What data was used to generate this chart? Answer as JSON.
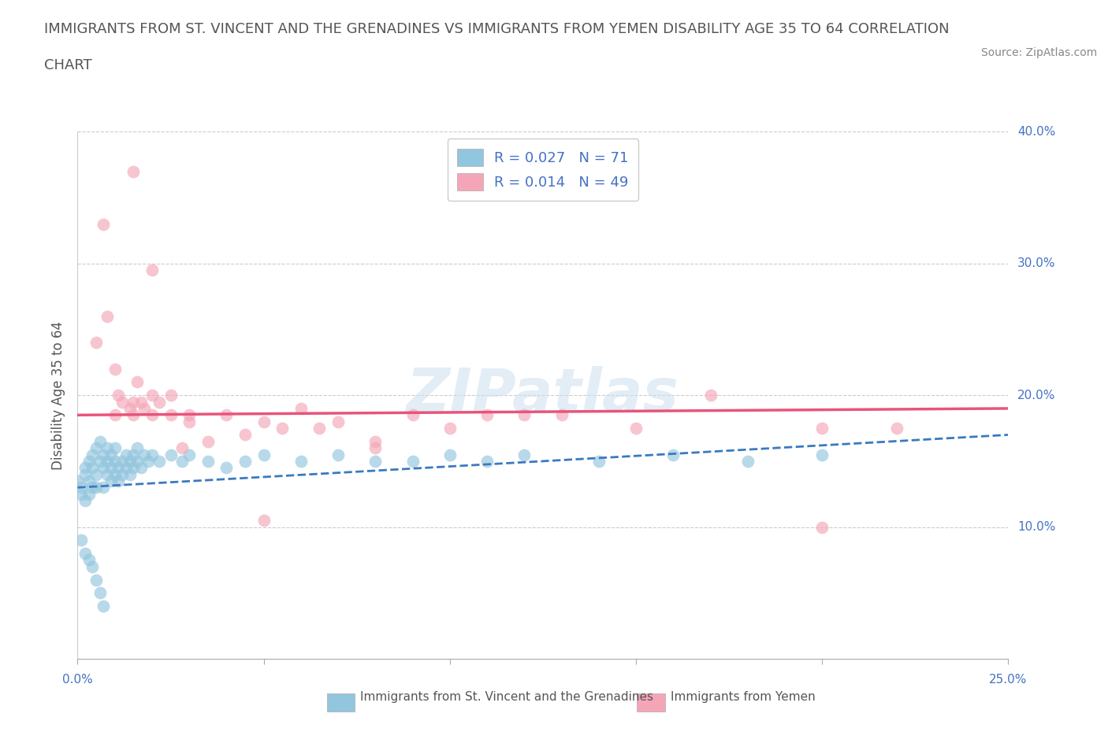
{
  "title_line1": "IMMIGRANTS FROM ST. VINCENT AND THE GRENADINES VS IMMIGRANTS FROM YEMEN DISABILITY AGE 35 TO 64 CORRELATION",
  "title_line2": "CHART",
  "source": "Source: ZipAtlas.com",
  "ylabel": "Disability Age 35 to 64",
  "xlim": [
    0.0,
    0.25
  ],
  "ylim": [
    0.0,
    0.4
  ],
  "xticks": [
    0.0,
    0.05,
    0.1,
    0.15,
    0.2,
    0.25
  ],
  "yticks": [
    0.1,
    0.2,
    0.3,
    0.4
  ],
  "ytick_labels": [
    "10.0%",
    "20.0%",
    "30.0%",
    "40.0%"
  ],
  "color_blue": "#92c5de",
  "color_pink": "#f4a6b8",
  "color_blue_line": "#3a7abf",
  "color_pink_line": "#e8547a",
  "watermark": "ZIPatlas",
  "legend_label1": "Immigrants from St. Vincent and the Grenadines",
  "legend_label2": "Immigrants from Yemen",
  "blue_x": [
    0.0,
    0.001,
    0.001,
    0.002,
    0.002,
    0.002,
    0.003,
    0.003,
    0.003,
    0.004,
    0.004,
    0.004,
    0.005,
    0.005,
    0.005,
    0.006,
    0.006,
    0.007,
    0.007,
    0.007,
    0.008,
    0.008,
    0.008,
    0.009,
    0.009,
    0.009,
    0.01,
    0.01,
    0.01,
    0.011,
    0.011,
    0.012,
    0.012,
    0.013,
    0.013,
    0.014,
    0.014,
    0.015,
    0.015,
    0.016,
    0.016,
    0.017,
    0.018,
    0.019,
    0.02,
    0.022,
    0.025,
    0.028,
    0.03,
    0.035,
    0.04,
    0.045,
    0.05,
    0.06,
    0.07,
    0.08,
    0.09,
    0.1,
    0.11,
    0.12,
    0.14,
    0.16,
    0.18,
    0.2,
    0.001,
    0.002,
    0.003,
    0.004,
    0.005,
    0.006,
    0.007
  ],
  "blue_y": [
    0.135,
    0.13,
    0.125,
    0.14,
    0.145,
    0.12,
    0.15,
    0.135,
    0.125,
    0.155,
    0.13,
    0.145,
    0.16,
    0.14,
    0.13,
    0.15,
    0.165,
    0.145,
    0.155,
    0.13,
    0.16,
    0.14,
    0.15,
    0.145,
    0.135,
    0.155,
    0.15,
    0.14,
    0.16,
    0.145,
    0.135,
    0.15,
    0.14,
    0.155,
    0.145,
    0.15,
    0.14,
    0.155,
    0.145,
    0.15,
    0.16,
    0.145,
    0.155,
    0.15,
    0.155,
    0.15,
    0.155,
    0.15,
    0.155,
    0.15,
    0.145,
    0.15,
    0.155,
    0.15,
    0.155,
    0.15,
    0.15,
    0.155,
    0.15,
    0.155,
    0.15,
    0.155,
    0.15,
    0.155,
    0.09,
    0.08,
    0.075,
    0.07,
    0.06,
    0.05,
    0.04
  ],
  "pink_x": [
    0.005,
    0.007,
    0.008,
    0.01,
    0.011,
    0.012,
    0.014,
    0.015,
    0.015,
    0.016,
    0.017,
    0.018,
    0.02,
    0.02,
    0.022,
    0.025,
    0.025,
    0.028,
    0.03,
    0.035,
    0.04,
    0.045,
    0.05,
    0.055,
    0.06,
    0.065,
    0.07,
    0.08,
    0.09,
    0.1,
    0.11,
    0.13,
    0.15,
    0.17,
    0.2,
    0.22,
    0.01,
    0.015,
    0.02,
    0.03,
    0.05,
    0.08,
    0.12,
    0.2
  ],
  "pink_y": [
    0.24,
    0.33,
    0.26,
    0.22,
    0.2,
    0.195,
    0.19,
    0.195,
    0.185,
    0.21,
    0.195,
    0.19,
    0.2,
    0.185,
    0.195,
    0.2,
    0.185,
    0.16,
    0.185,
    0.165,
    0.185,
    0.17,
    0.18,
    0.175,
    0.19,
    0.175,
    0.18,
    0.165,
    0.185,
    0.175,
    0.185,
    0.185,
    0.175,
    0.2,
    0.175,
    0.175,
    0.185,
    0.37,
    0.295,
    0.18,
    0.105,
    0.16,
    0.185,
    0.1
  ],
  "blue_trend_x": [
    0.0,
    0.25
  ],
  "blue_trend_y": [
    0.13,
    0.17
  ],
  "pink_trend_x": [
    0.0,
    0.25
  ],
  "pink_trend_y": [
    0.185,
    0.19
  ],
  "grid_color": "#cccccc",
  "background_color": "#ffffff",
  "title_fontsize": 13,
  "axis_label_fontsize": 12,
  "tick_fontsize": 11,
  "legend_fontsize": 13
}
